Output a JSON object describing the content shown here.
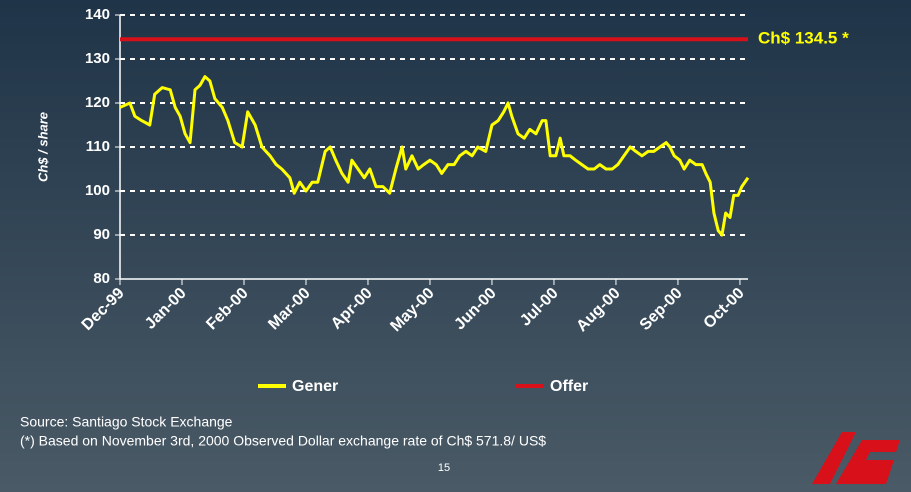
{
  "chart_data": {
    "type": "line",
    "y_label": "Ch$ / share",
    "annotation": "Ch$ 134.5 *",
    "xlim": [
      0,
      10.13
    ],
    "xticks": [
      {
        "value": 0,
        "label": "Dec-99"
      },
      {
        "value": 1,
        "label": "Jan-00"
      },
      {
        "value": 2,
        "label": "Feb-00"
      },
      {
        "value": 3,
        "label": "Mar-00"
      },
      {
        "value": 4,
        "label": "Apr-00"
      },
      {
        "value": 5,
        "label": "May-00"
      },
      {
        "value": 6,
        "label": "Jun-00"
      },
      {
        "value": 7,
        "label": "Jul-00"
      },
      {
        "value": 8,
        "label": "Aug-00"
      },
      {
        "value": 9,
        "label": "Sep-00"
      },
      {
        "value": 10,
        "label": "Oct-00"
      }
    ],
    "ylim": [
      80,
      140
    ],
    "yticks": [
      80,
      90,
      100,
      110,
      120,
      130,
      140
    ],
    "grid": true,
    "series": [
      {
        "name": "Gener",
        "color": "#ffff00",
        "x": [
          0,
          0.16,
          0.24,
          0.35,
          0.48,
          0.56,
          0.68,
          0.81,
          0.89,
          0.97,
          1.05,
          1.13,
          1.21,
          1.29,
          1.37,
          1.45,
          1.53,
          1.65,
          1.74,
          1.85,
          1.97,
          2.06,
          2.18,
          2.29,
          2.42,
          2.52,
          2.61,
          2.74,
          2.81,
          2.9,
          3.0,
          3.1,
          3.19,
          3.31,
          3.39,
          3.48,
          3.58,
          3.68,
          3.74,
          3.84,
          3.94,
          4.03,
          4.13,
          4.24,
          4.35,
          4.45,
          4.55,
          4.61,
          4.71,
          4.81,
          4.9,
          5.0,
          5.1,
          5.19,
          5.29,
          5.39,
          5.48,
          5.58,
          5.68,
          5.77,
          5.9,
          6.0,
          6.1,
          6.19,
          6.26,
          6.32,
          6.42,
          6.52,
          6.61,
          6.71,
          6.81,
          6.87,
          6.94,
          7.03,
          7.1,
          7.16,
          7.26,
          7.35,
          7.45,
          7.55,
          7.65,
          7.74,
          7.84,
          7.94,
          8.03,
          8.13,
          8.23,
          8.32,
          8.42,
          8.52,
          8.61,
          8.71,
          8.81,
          8.87,
          8.94,
          9.03,
          9.1,
          9.19,
          9.29,
          9.39,
          9.45,
          9.52,
          9.58,
          9.65,
          9.71,
          9.77,
          9.84,
          9.9,
          9.97,
          10.03,
          10.13
        ],
        "values": [
          119,
          120,
          117,
          116,
          115,
          122,
          123.5,
          123,
          119,
          117,
          113,
          111,
          123,
          124,
          126,
          125,
          121,
          119,
          116,
          111,
          110,
          118,
          115,
          110,
          108,
          106,
          105,
          103,
          99.5,
          102,
          100,
          102,
          102,
          109,
          110,
          107,
          104,
          102,
          107,
          105,
          103,
          105,
          101,
          101,
          99.5,
          105,
          110,
          105,
          108,
          105,
          106,
          107,
          106,
          104,
          106,
          106,
          108,
          109,
          108,
          110,
          109,
          115,
          116,
          118,
          120,
          117,
          113,
          112,
          114,
          113,
          116,
          116,
          108,
          108,
          112,
          108,
          108,
          107,
          106,
          105,
          105,
          106,
          105,
          105,
          106,
          108,
          110,
          109,
          108,
          109,
          109,
          110,
          111,
          110,
          108,
          107,
          105,
          107,
          106,
          106,
          104,
          102,
          95,
          91,
          90,
          95,
          94,
          99,
          99,
          101,
          103
        ]
      },
      {
        "name": "Offer",
        "color": "#d8101a",
        "x": [
          0,
          10.13
        ],
        "values": [
          134.5,
          134.5
        ]
      }
    ]
  },
  "footer": {
    "source": "Source: Santiago Stock Exchange",
    "note": "(*) Based on November 3rd, 2000 Observed Dollar exchange rate of Ch$ 571.8/ US$",
    "page": "15"
  }
}
